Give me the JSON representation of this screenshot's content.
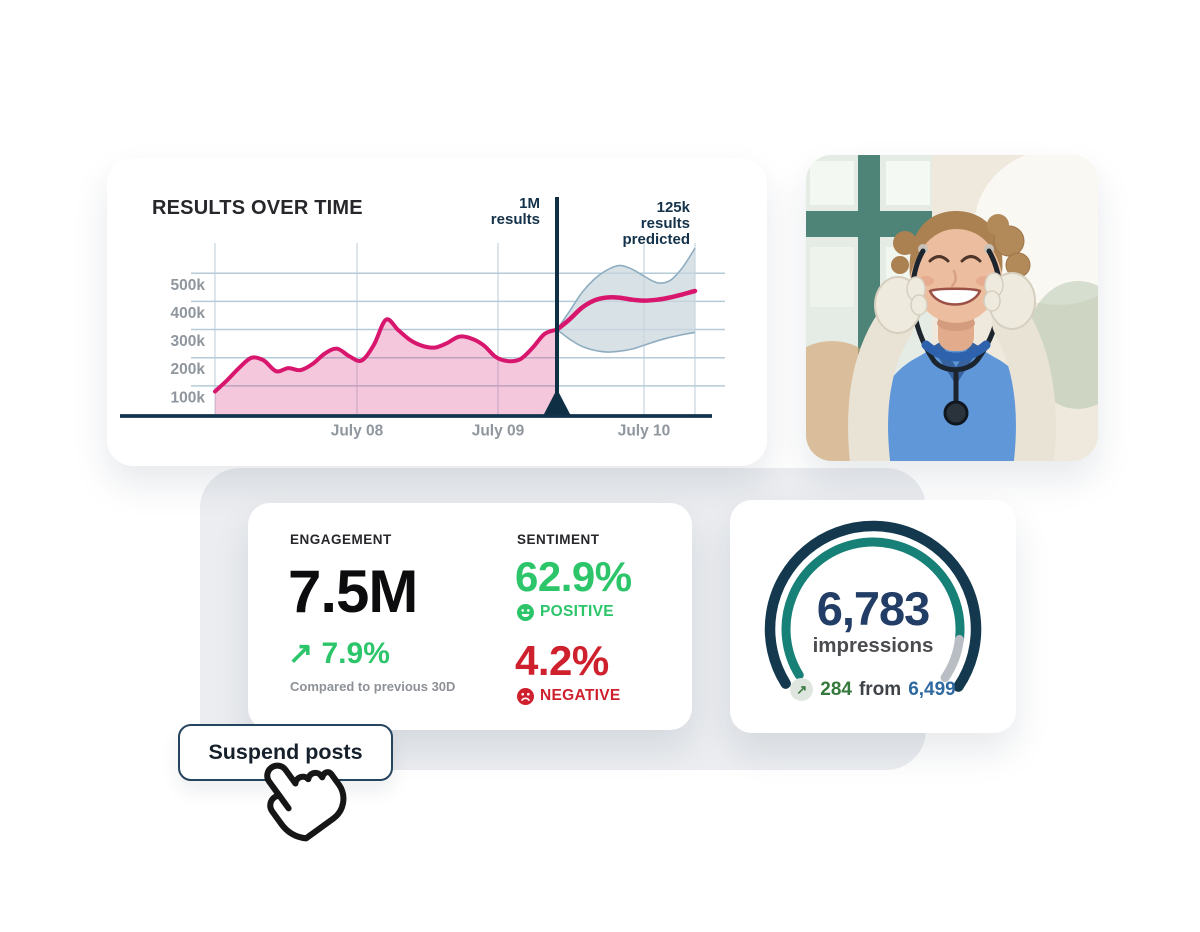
{
  "page": {
    "background": "#ffffff",
    "panel_color": "#ebedf0"
  },
  "results_card": {
    "title": "RESULTS OVER TIME",
    "annotation_current": [
      "1M",
      "results"
    ],
    "annotation_predicted": [
      "125k",
      "results",
      "predicted"
    ]
  },
  "chart_data": [
    {
      "type": "area",
      "title": "RESULTS OVER TIME",
      "x_ticks": [
        "July 08",
        "July 09",
        "July 10"
      ],
      "y_ticks": [
        "500k",
        "400k",
        "300k",
        "200k",
        "100k"
      ],
      "ylim_k": [
        0,
        600
      ],
      "grid": true,
      "unit": "results (thousands)",
      "annotations": [
        "1M results",
        "125k results predicted"
      ],
      "marker_color": "#0f3044",
      "series": [
        {
          "name": "results",
          "style": "area-line",
          "color": "#d8166e",
          "fill": "rgba(214,55,130,0.28)",
          "values_k": [
            80,
            120,
            165,
            200,
            190,
            152,
            163,
            156,
            178,
            215,
            232,
            205,
            190,
            245,
            335,
            298,
            262,
            242,
            236,
            252,
            275,
            268,
            244,
            202,
            188,
            195,
            235,
            285,
            300
          ]
        },
        {
          "name": "predicted results",
          "style": "line-with-band",
          "color": "#d8166e",
          "band_fill": "rgba(203,215,222,0.75)",
          "band_stroke": "#8fadc0",
          "center_k": [
            300,
            336,
            378,
            404,
            414,
            413,
            406,
            403,
            406,
            414,
            425,
            437
          ],
          "upper_k": [
            300,
            365,
            432,
            480,
            512,
            528,
            514,
            488,
            466,
            474,
            520,
            589
          ],
          "lower_k": [
            300,
            266,
            240,
            226,
            220,
            223,
            231,
            245,
            260,
            272,
            282,
            290
          ]
        }
      ]
    },
    {
      "type": "gauge",
      "value": 6783,
      "label": "impressions",
      "delta": 284,
      "previous": 6499,
      "progress_pct": 89,
      "colors": {
        "outer": "#14394f",
        "progress": "#178077",
        "remainder": "#b8bec3",
        "value": "#223e66"
      }
    }
  ],
  "metrics_card": {
    "engagement": {
      "label": "ENGAGEMENT",
      "value": "7.5M",
      "delta_arrow": "↗",
      "delta": "7.9%",
      "footnote": "Compared to previous 30D"
    },
    "sentiment": {
      "label": "SENTIMENT",
      "positive_value": "62.9%",
      "positive_label": "POSITIVE",
      "negative_value": "4.2%",
      "negative_label": "NEGATIVE"
    }
  },
  "gauge_card": {
    "value": "6,783",
    "label": "impressions",
    "delta_arrow": "↗",
    "delta": "284",
    "from_word": "from",
    "previous": "6,499"
  },
  "button": {
    "label": "Suspend posts"
  }
}
